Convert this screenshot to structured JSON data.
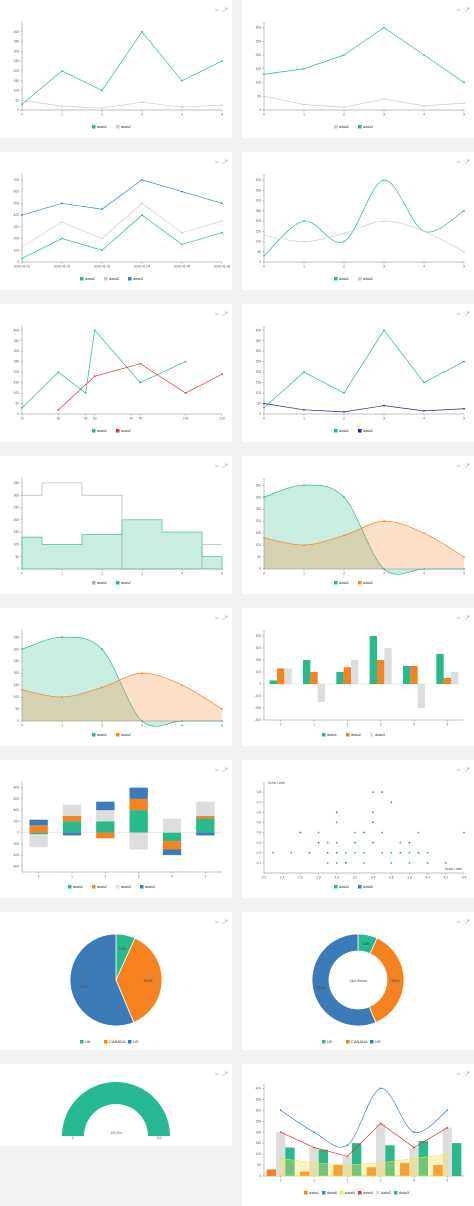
{
  "icons": [
    "minimize-icon",
    "expand-icon"
  ],
  "chart_data": [
    {
      "type": "line",
      "x": [
        0,
        1,
        2,
        3,
        4,
        5
      ],
      "series": [
        {
          "name": "data1",
          "values": [
            30,
            200,
            100,
            400,
            150,
            250
          ],
          "color": "#2ab88d"
        },
        {
          "name": "data2",
          "values": [
            50,
            20,
            10,
            40,
            15,
            25
          ],
          "color": "#cccccc"
        }
      ],
      "ylim": [
        0,
        450
      ],
      "yticks": [
        0,
        50,
        100,
        150,
        200,
        250,
        300,
        350,
        400
      ]
    },
    {
      "type": "line",
      "x": [
        0,
        1,
        2,
        3,
        4,
        5
      ],
      "series": [
        {
          "name": "data2",
          "values": [
            50,
            20,
            10,
            40,
            15,
            25
          ],
          "color": "#cccccc"
        },
        {
          "name": "data3",
          "values": [
            130,
            150,
            200,
            300,
            200,
            100
          ],
          "color": "#2ab88d"
        }
      ],
      "ylim": [
        0,
        320
      ],
      "yticks": [
        0,
        50,
        100,
        150,
        200,
        250,
        300
      ]
    },
    {
      "type": "line",
      "x_type": "date",
      "xticklabels": [
        "2016-01-01",
        "2016-01-02",
        "2016-01-03",
        "2016-01-04",
        "2016-01-05",
        "2016-01-06"
      ],
      "series": [
        {
          "name": "data1",
          "values": [
            30,
            200,
            100,
            400,
            150,
            250
          ],
          "color": "#2ab88d"
        },
        {
          "name": "data2",
          "values": [
            130,
            340,
            200,
            500,
            250,
            350
          ],
          "color": "#cccccc"
        },
        {
          "name": "data3",
          "values": [
            400,
            500,
            450,
            700,
            600,
            500
          ],
          "color": "#3a84c0"
        }
      ],
      "ylim": [
        0,
        750
      ],
      "yticks": [
        0,
        100,
        200,
        300,
        400,
        500,
        600,
        700
      ]
    },
    {
      "type": "line",
      "smooth": true,
      "x": [
        0,
        1,
        2,
        3,
        4,
        5
      ],
      "series": [
        {
          "name": "data1",
          "values": [
            30,
            200,
            100,
            400,
            150,
            250
          ],
          "color": "#2ab88d"
        },
        {
          "name": "data2",
          "values": [
            130,
            100,
            140,
            200,
            150,
            50
          ],
          "color": "#cccccc"
        }
      ],
      "ylim": [
        0,
        430
      ],
      "yticks": [
        0,
        50,
        100,
        150,
        200,
        250,
        300,
        350,
        400
      ]
    },
    {
      "type": "line",
      "xticks": [
        10,
        30,
        45,
        50,
        70,
        75,
        100,
        120
      ],
      "series": [
        {
          "name": "data1",
          "x": [
            10,
            30,
            45,
            50,
            75,
            100
          ],
          "values": [
            30,
            200,
            100,
            400,
            150,
            250
          ],
          "color": "#2ab88d"
        },
        {
          "name": "data2",
          "x": [
            30,
            50,
            75,
            100,
            120
          ],
          "values": [
            20,
            180,
            240,
            100,
            190
          ],
          "color": "#e8322c"
        }
      ],
      "ylim": [
        0,
        420
      ],
      "yticks": [
        0,
        50,
        100,
        150,
        200,
        250,
        300,
        350,
        400
      ]
    },
    {
      "type": "line",
      "x": [
        0,
        1,
        2,
        3,
        4,
        5
      ],
      "series": [
        {
          "name": "data1",
          "values": [
            30,
            200,
            100,
            400,
            150,
            250
          ],
          "color": "#2ab88d"
        },
        {
          "name": "data2",
          "values": [
            50,
            20,
            10,
            40,
            15,
            25
          ],
          "color": "#2323a8"
        }
      ],
      "ylim": [
        0,
        420
      ],
      "yticks": [
        0,
        50,
        100,
        150,
        200,
        250,
        300,
        350,
        400
      ]
    },
    {
      "type": "area",
      "step": true,
      "x": [
        0,
        1,
        2,
        3,
        4,
        5
      ],
      "series": [
        {
          "name": "data1",
          "values": [
            300,
            350,
            300,
            0,
            0,
            100
          ],
          "color": "#aaaaaa",
          "fill": false
        },
        {
          "name": "data2",
          "values": [
            130,
            100,
            140,
            200,
            150,
            50
          ],
          "color": "#2ab88d",
          "fill": true
        }
      ],
      "ylim": [
        0,
        370
      ],
      "yticks": [
        0,
        50,
        100,
        150,
        200,
        250,
        300,
        350
      ]
    },
    {
      "type": "area",
      "smooth": true,
      "x": [
        0,
        1,
        2,
        3,
        4,
        5
      ],
      "series": [
        {
          "name": "data1",
          "values": [
            300,
            350,
            300,
            0,
            0,
            0
          ],
          "color": "#2ab88d"
        },
        {
          "name": "data2",
          "values": [
            130,
            100,
            140,
            200,
            150,
            50
          ],
          "color": "#f58220"
        }
      ],
      "ylim": [
        0,
        380
      ],
      "yticks": [
        0,
        50,
        100,
        150,
        200,
        250,
        300,
        350
      ]
    },
    {
      "type": "area",
      "smooth": true,
      "x": [
        0,
        1,
        2,
        3,
        4,
        5
      ],
      "series": [
        {
          "name": "data1",
          "values": [
            300,
            350,
            300,
            0,
            0,
            0
          ],
          "color": "#2ab88d"
        },
        {
          "name": "data2",
          "values": [
            130,
            100,
            140,
            200,
            150,
            50
          ],
          "color": "#f58220"
        }
      ],
      "ylim": [
        0,
        380
      ],
      "yticks": [
        0,
        50,
        100,
        150,
        200,
        250,
        300,
        350
      ]
    },
    {
      "type": "bar",
      "categories": [
        0,
        1,
        2,
        3,
        4,
        5
      ],
      "series": [
        {
          "name": "data1",
          "values": [
            30,
            200,
            100,
            400,
            150,
            250
          ],
          "color": "#2ab88d"
        },
        {
          "name": "data2",
          "values": [
            130,
            100,
            140,
            200,
            150,
            50
          ],
          "color": "#f58220"
        },
        {
          "name": "data3",
          "values": [
            130,
            -150,
            200,
            300,
            -200,
            100
          ],
          "color": "#dddddd"
        }
      ],
      "ylim": [
        -300,
        450
      ],
      "yticks": [
        -300,
        -200,
        -100,
        0,
        100,
        200,
        300,
        400
      ]
    },
    {
      "type": "bar",
      "stacked": true,
      "categories": [
        0,
        1,
        2,
        3,
        4,
        5
      ],
      "series": [
        {
          "name": "data1",
          "values": [
            -30,
            200,
            200,
            400,
            -150,
            250
          ],
          "color": "#2ab88d"
        },
        {
          "name": "data2",
          "values": [
            130,
            100,
            -100,
            200,
            -150,
            50
          ],
          "color": "#f58220"
        },
        {
          "name": "data3",
          "values": [
            -230,
            200,
            200,
            -300,
            250,
            250
          ],
          "color": "#dddddd"
        },
        {
          "name": "data4",
          "values": [
            100,
            -50,
            150,
            200,
            -100,
            -50
          ],
          "color": "#3a7bb8"
        }
      ],
      "ylim": [
        -700,
        900
      ],
      "yticks": [
        -600,
        -400,
        -200,
        0,
        200,
        400,
        600,
        800
      ]
    },
    {
      "type": "scatter",
      "xlabel": "Some Label",
      "ylabel": "Some Label",
      "xticks": [
        2.2,
        2.4,
        2.6,
        2.8,
        3.0,
        3.2,
        3.4,
        3.6,
        3.8,
        4.0,
        4.2,
        4.4
      ],
      "yticks": [
        0.1,
        0.2,
        0.3,
        0.4,
        0.5,
        0.6,
        0.7,
        0.8
      ],
      "ylim": [
        0,
        0.9
      ],
      "xlim": [
        2.2,
        4.4
      ],
      "series": [
        {
          "name": "data4",
          "color": "#2ab88d",
          "points": [
            [
              2.3,
              0.2
            ],
            [
              2.5,
              0.2
            ],
            [
              2.7,
              0.2
            ],
            [
              2.8,
              0.4
            ],
            [
              2.9,
              0.3
            ],
            [
              3.0,
              0.5
            ],
            [
              3.0,
              0.3
            ],
            [
              3.1,
              0.2
            ],
            [
              3.2,
              0.4
            ],
            [
              3.3,
              0.2
            ],
            [
              3.4,
              0.6
            ],
            [
              3.5,
              0.2
            ],
            [
              3.5,
              0.4
            ],
            [
              3.6,
              0.2
            ],
            [
              3.7,
              0.3
            ],
            [
              3.8,
              0.2
            ],
            [
              3.9,
              0.4
            ],
            [
              4.0,
              0.2
            ],
            [
              4.4,
              0.4
            ],
            [
              3.2,
              0.2
            ],
            [
              2.9,
              0.1
            ],
            [
              3.0,
              0.1
            ],
            [
              3.1,
              0.1
            ],
            [
              3.3,
              0.1
            ],
            [
              3.6,
              0.1
            ],
            [
              3.8,
              0.1
            ]
          ]
        },
        {
          "name": "data5",
          "color": "#3a7bb8",
          "points": [
            [
              2.6,
              0.4
            ],
            [
              2.7,
              0.2
            ],
            [
              2.8,
              0.3
            ],
            [
              2.9,
              0.2
            ],
            [
              3.0,
              0.2
            ],
            [
              3.1,
              0.1
            ],
            [
              3.2,
              0.3
            ],
            [
              3.3,
              0.4
            ],
            [
              3.4,
              0.3
            ],
            [
              3.5,
              0.8
            ],
            [
              3.6,
              0.7
            ],
            [
              3.7,
              0.2
            ],
            [
              3.8,
              0.3
            ],
            [
              3.9,
              0.2
            ],
            [
              4.0,
              0.1
            ],
            [
              4.2,
              0.1
            ],
            [
              3.4,
              0.5
            ],
            [
              3.4,
              0.8
            ],
            [
              3.0,
              0.6
            ]
          ]
        }
      ]
    },
    {
      "type": "pie",
      "slices": [
        {
          "name": "UK",
          "value": 6.8,
          "label": "6.8%",
          "color": "#2ab88d"
        },
        {
          "name": "CANADA",
          "value": 36.9,
          "label": "36.9%",
          "color": "#f58220"
        },
        {
          "name": "US",
          "value": 56.3,
          "label": "56.3%",
          "color": "#3a7bb8"
        }
      ]
    },
    {
      "type": "donut",
      "title": "Total Visitors",
      "slices": [
        {
          "name": "UK",
          "value": 6.8,
          "label": "6.8%",
          "color": "#2ab88d"
        },
        {
          "name": "CANADA",
          "value": 36.9,
          "label": "36.9%",
          "color": "#f58220"
        },
        {
          "name": "US",
          "value": 56.3,
          "label": "56.3%",
          "color": "#3a7bb8"
        }
      ]
    },
    {
      "type": "gauge",
      "value": 100,
      "min": 0,
      "max": 100,
      "label": "100.0%",
      "min_label": "0",
      "max_label": "100",
      "color": "#26b893"
    },
    {
      "type": "bar",
      "combo": true,
      "categories": [
        0,
        1,
        2,
        3,
        4,
        5
      ],
      "series": [
        {
          "name": "data1",
          "kind": "bar",
          "values": [
            30,
            20,
            50,
            40,
            60,
            50
          ],
          "color": "#f58220"
        },
        {
          "name": "data2",
          "kind": "bar",
          "values": [
            200,
            130,
            90,
            240,
            130,
            220
          ],
          "color": "#dddddd"
        },
        {
          "name": "data3",
          "kind": "bar",
          "values": [
            130,
            120,
            150,
            140,
            160,
            150
          ],
          "color": "#2ab88d"
        },
        {
          "name": "data4",
          "kind": "line",
          "values": [
            200,
            130,
            90,
            240,
            130,
            220
          ],
          "color": "#e8322c"
        },
        {
          "name": "data5",
          "kind": "area",
          "values": [
            80,
            60,
            50,
            60,
            80,
            100
          ],
          "color": "#f5e050"
        },
        {
          "name": "data6",
          "kind": "spline",
          "values": [
            300,
            200,
            140,
            400,
            200,
            300
          ],
          "color": "#3a84c0"
        }
      ],
      "ylim": [
        0,
        420
      ],
      "yticks": [
        0,
        50,
        100,
        150,
        200,
        250,
        300,
        350,
        400
      ],
      "legend": [
        "data1",
        "data6",
        "data5",
        "data4",
        "data2",
        "data3"
      ]
    }
  ]
}
